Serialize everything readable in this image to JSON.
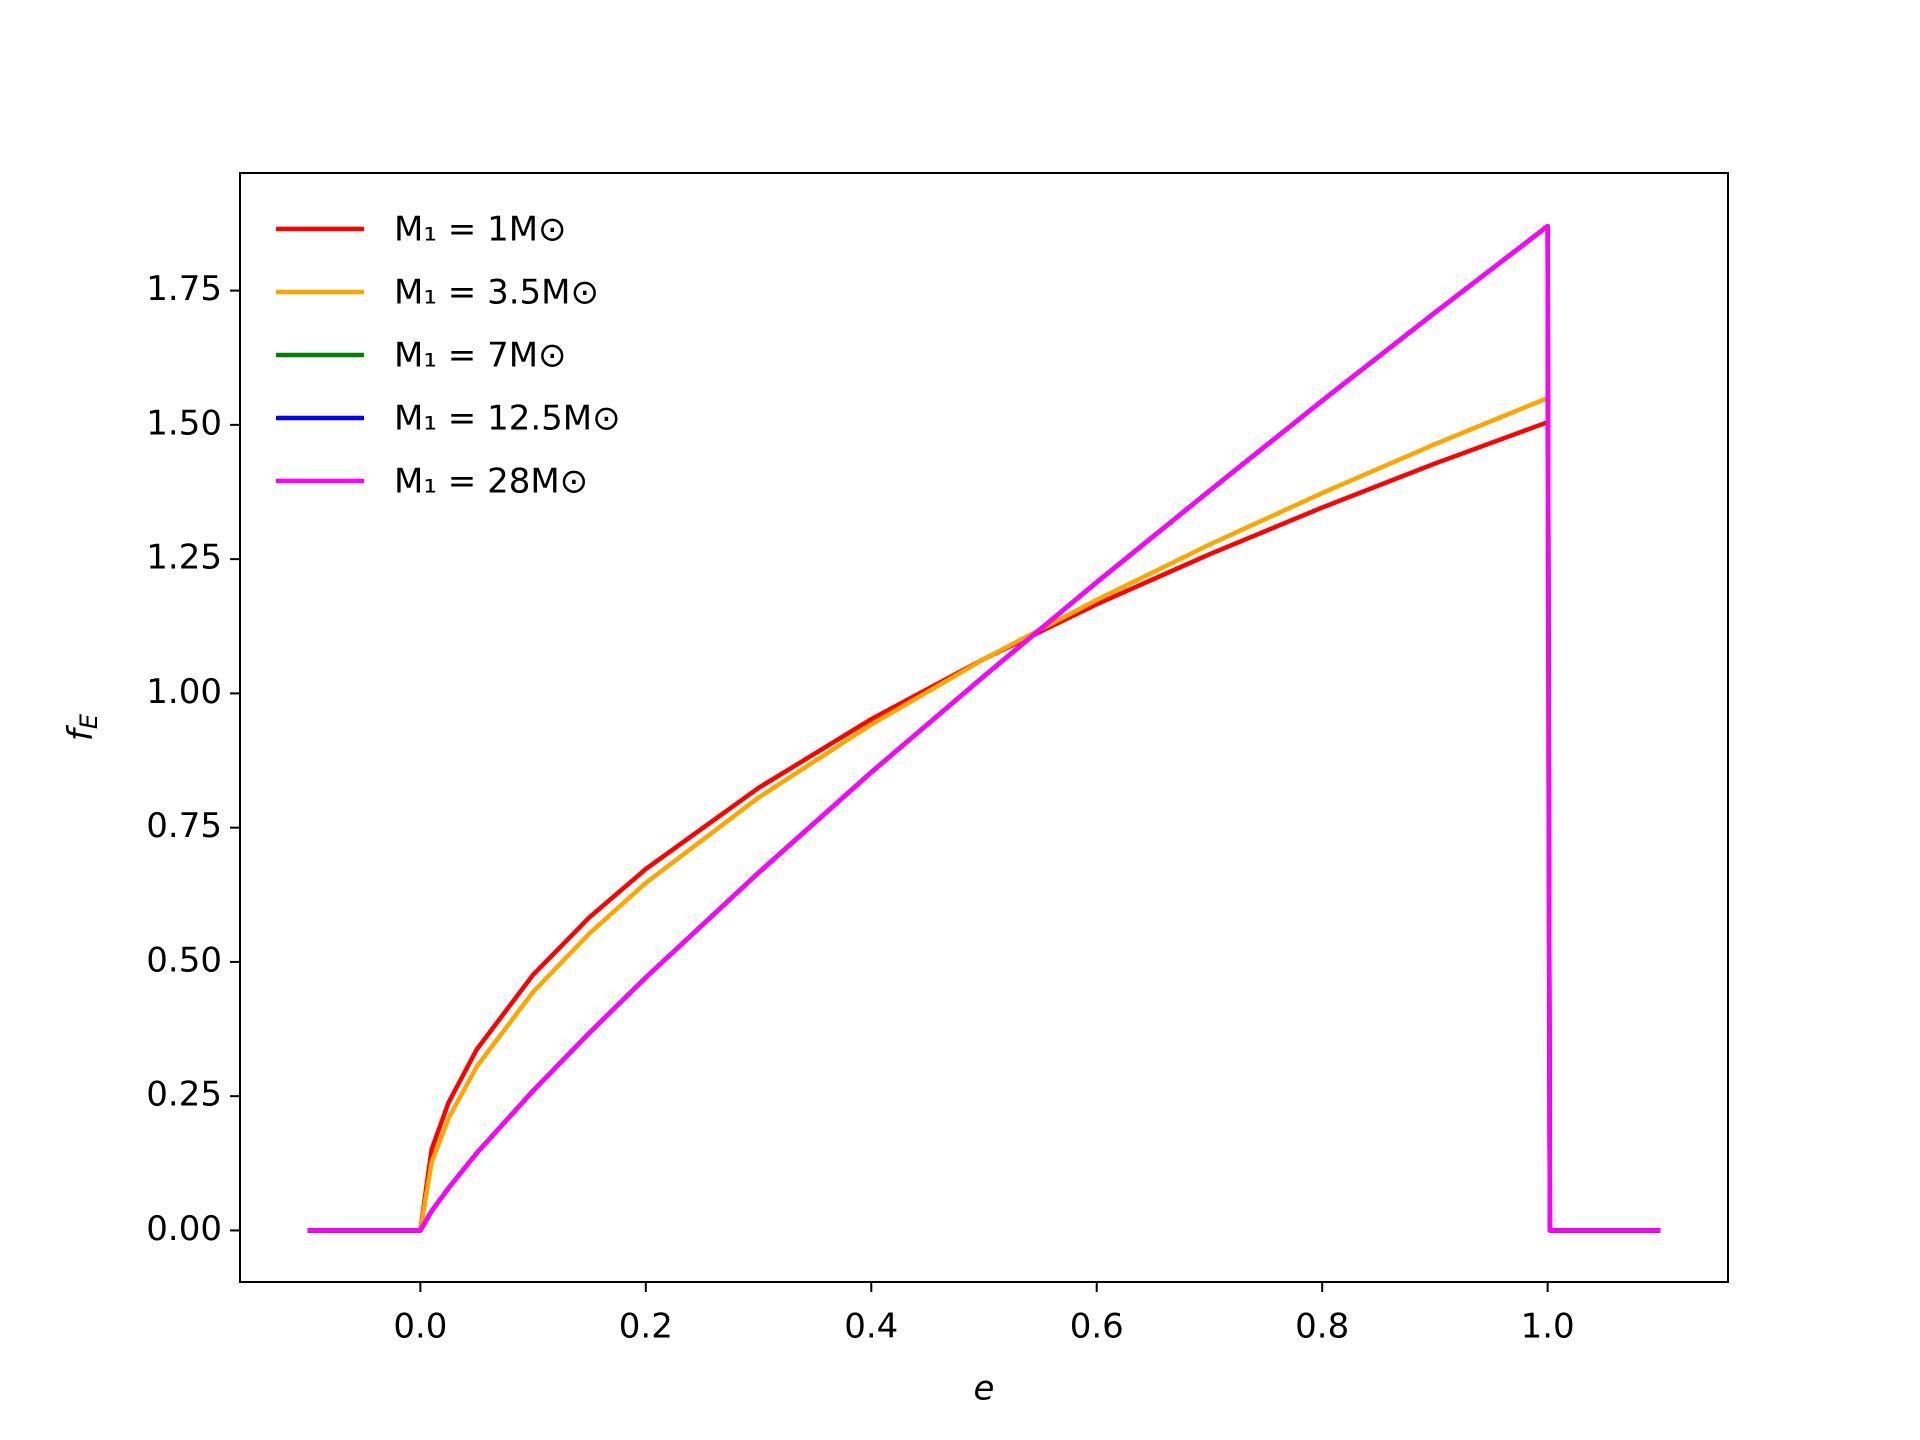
{
  "chart_data": {
    "type": "line",
    "xlabel": "e",
    "ylabel": "fE",
    "x": [
      -0.1,
      0,
      0.01,
      0.025,
      0.05,
      0.1,
      0.15,
      0.2,
      0.3,
      0.4,
      0.5,
      0.6,
      0.7,
      0.8,
      0.9,
      1.0,
      1.002,
      1.1
    ],
    "series": [
      {
        "name": "M₁ = 1M⊙",
        "color": "#ff0000",
        "values": [
          0,
          0,
          0.151,
          0.238,
          0.337,
          0.476,
          0.583,
          0.673,
          0.824,
          0.952,
          1.064,
          1.166,
          1.259,
          1.346,
          1.428,
          1.505,
          0,
          0
        ]
      },
      {
        "name": "M₁ = 3.5M⊙",
        "color": "#ffa500",
        "values": [
          0,
          0,
          0.127,
          0.209,
          0.305,
          0.444,
          0.553,
          0.647,
          0.806,
          0.942,
          1.064,
          1.174,
          1.277,
          1.373,
          1.464,
          1.55,
          0,
          0
        ]
      },
      {
        "name": "M₁ = 7M⊙",
        "color": "#008000",
        "values": [
          0,
          0,
          0.036,
          0.079,
          0.144,
          0.26,
          0.368,
          0.471,
          0.666,
          0.853,
          1.032,
          1.207,
          1.377,
          1.545,
          1.709,
          1.87,
          0,
          0
        ]
      },
      {
        "name": "M₁ = 12.5M⊙",
        "color": "#0000ff",
        "values": [
          0,
          0,
          0.036,
          0.079,
          0.144,
          0.26,
          0.368,
          0.471,
          0.666,
          0.853,
          1.032,
          1.207,
          1.377,
          1.545,
          1.709,
          1.87,
          0,
          0
        ]
      },
      {
        "name": "M₁ = 28M⊙",
        "color": "#ff00ff",
        "values": [
          0,
          0,
          0.036,
          0.079,
          0.144,
          0.26,
          0.368,
          0.471,
          0.666,
          0.853,
          1.032,
          1.207,
          1.377,
          1.545,
          1.709,
          1.87,
          0,
          0
        ]
      }
    ],
    "xlim": [
      -0.16,
      1.16
    ],
    "xticks": [
      {
        "value": 0,
        "label": "0.0"
      },
      0.2,
      0.4,
      0.6,
      0.8,
      {
        "value": 1,
        "label": "1.0"
      }
    ],
    "ylim": [
      -0.096,
      1.969
    ],
    "yticks": [
      {
        "value": 0,
        "label": "0.00"
      },
      0.25,
      {
        "value": 0.5,
        "label": "0.50"
      },
      0.75,
      {
        "value": 1,
        "label": "1.00"
      },
      1.25,
      {
        "value": 1.5,
        "label": "1.50"
      },
      1.75
    ],
    "grid": false,
    "legend": "upper left"
  }
}
